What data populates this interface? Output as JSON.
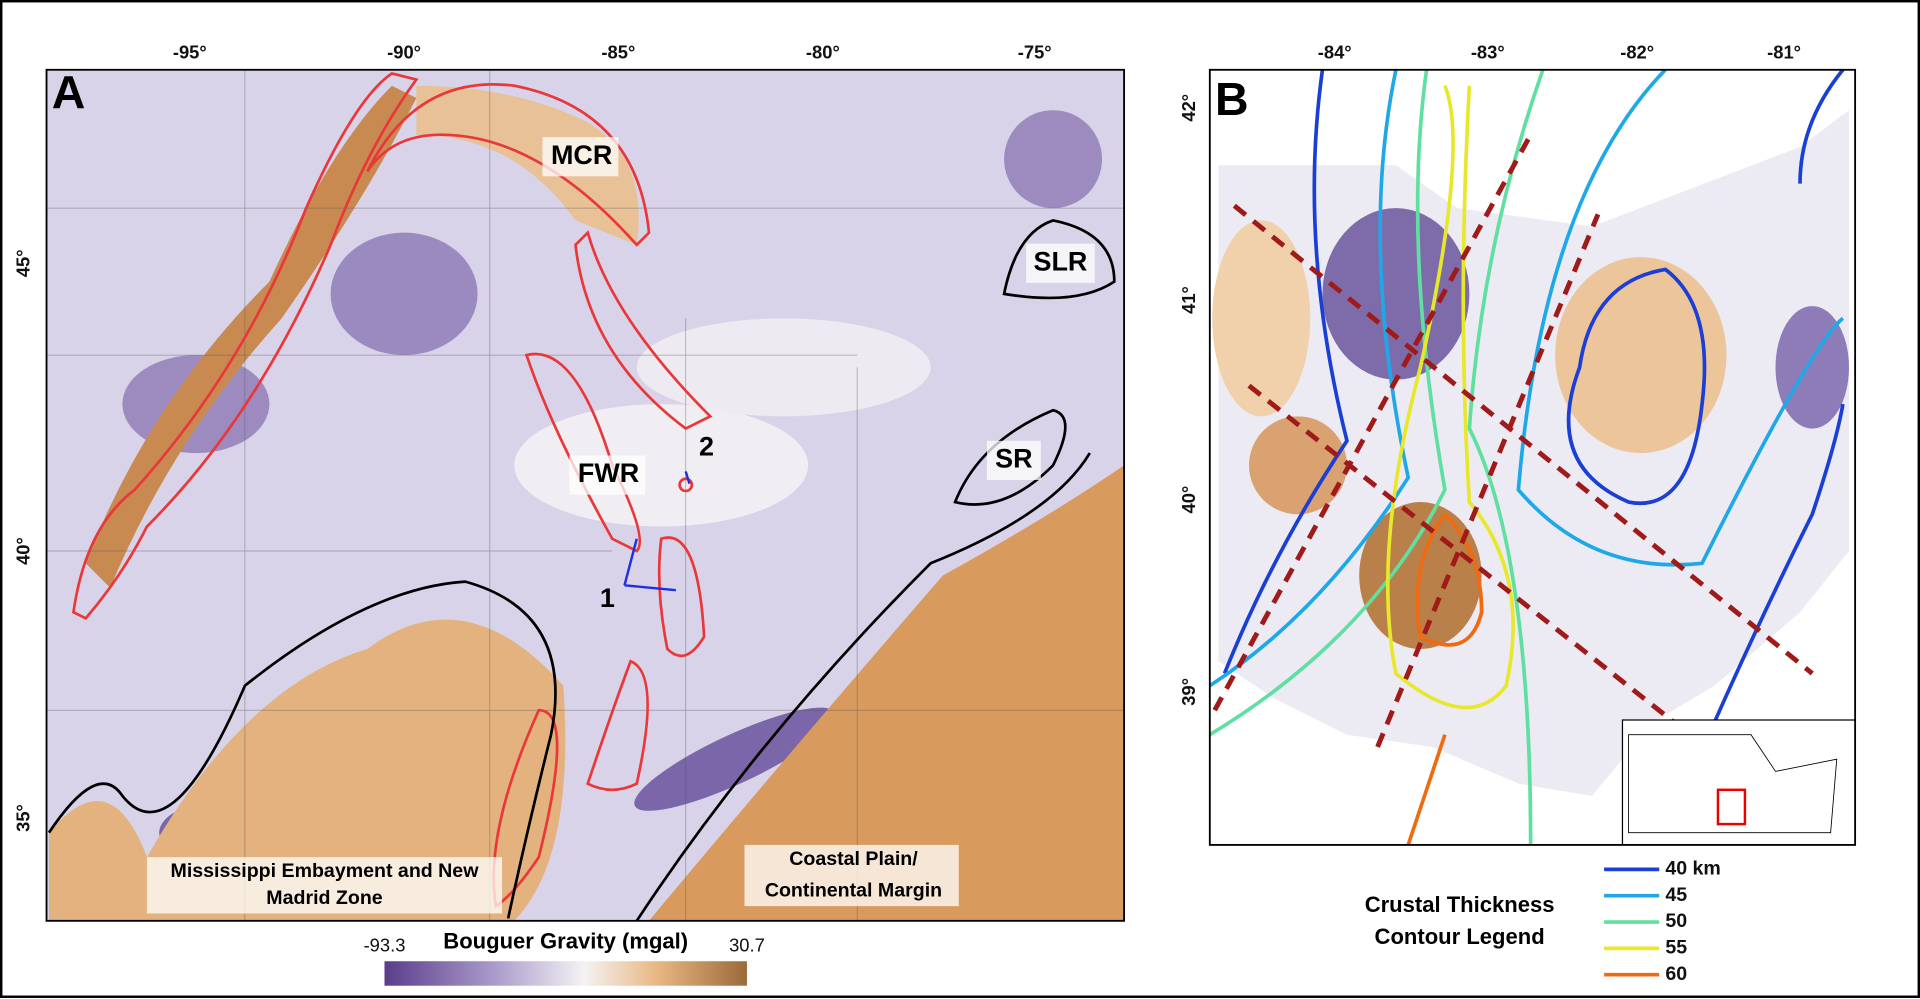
{
  "panel_a": {
    "label": "A",
    "lon_ticks": [
      "-95°",
      "-90°",
      "-85°",
      "-80°",
      "-75°"
    ],
    "lat_ticks": [
      "45°",
      "40°",
      "35°"
    ],
    "regions": [
      "MCR",
      "FWR",
      "SLR",
      "SR"
    ],
    "points": [
      "1",
      "2"
    ],
    "embayment_lines": [
      "Mississippi Embayment and New",
      "Madrid Zone"
    ],
    "coastal_lines": [
      "Coastal Plain/",
      "Continental Margin"
    ],
    "colorbar": {
      "title": "Bouguer Gravity (mgal)",
      "min": -93.3,
      "max": 30.7
    }
  },
  "panel_b": {
    "label": "B",
    "lon_ticks": [
      "-84°",
      "-83°",
      "-82°",
      "-81°"
    ],
    "lat_ticks": [
      "42°",
      "41°",
      "40°",
      "39°"
    ],
    "legend": {
      "title_lines": [
        "Crustal Thickness",
        "Contour Legend"
      ],
      "entries": [
        {
          "label": "40 km",
          "color": "#1a3fd6"
        },
        {
          "label": "45",
          "color": "#1fa8e8"
        },
        {
          "label": "50",
          "color": "#5fe0a0"
        },
        {
          "label": "55",
          "color": "#e8e82a"
        },
        {
          "label": "60",
          "color": "#f06a10"
        }
      ]
    }
  }
}
